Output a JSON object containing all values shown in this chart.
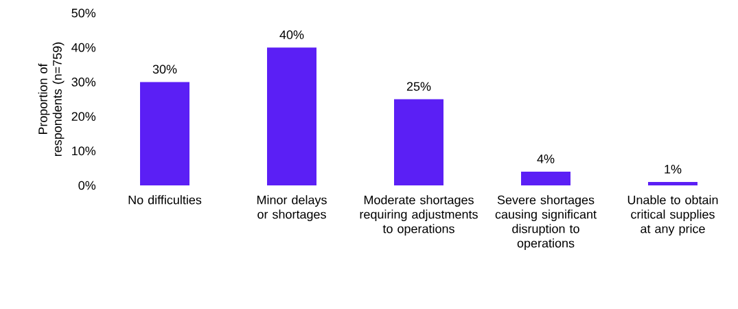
{
  "chart_data": {
    "type": "bar",
    "ylabel": "Proportion of respondents (n=759)",
    "categories": [
      "No difficulties",
      "Minor delays or shortages",
      "Moderate shortages requiring adjustments to operations",
      "Severe shortages causing significant disruption to operations",
      "Unable to obtain critical supplies at any price"
    ],
    "values": [
      30,
      40,
      25,
      4,
      1
    ],
    "value_labels": [
      "30%",
      "40%",
      "25%",
      "4%",
      "1%"
    ],
    "color": "#5b1ff5",
    "ylim": [
      0,
      50
    ],
    "yticks": [
      {
        "value": 0,
        "label": "0%"
      },
      {
        "value": 10,
        "label": "10%"
      },
      {
        "value": 20,
        "label": "20%"
      },
      {
        "value": 30,
        "label": "30%"
      },
      {
        "value": 40,
        "label": "40%"
      },
      {
        "value": 50,
        "label": "50%"
      }
    ],
    "grid": false
  }
}
